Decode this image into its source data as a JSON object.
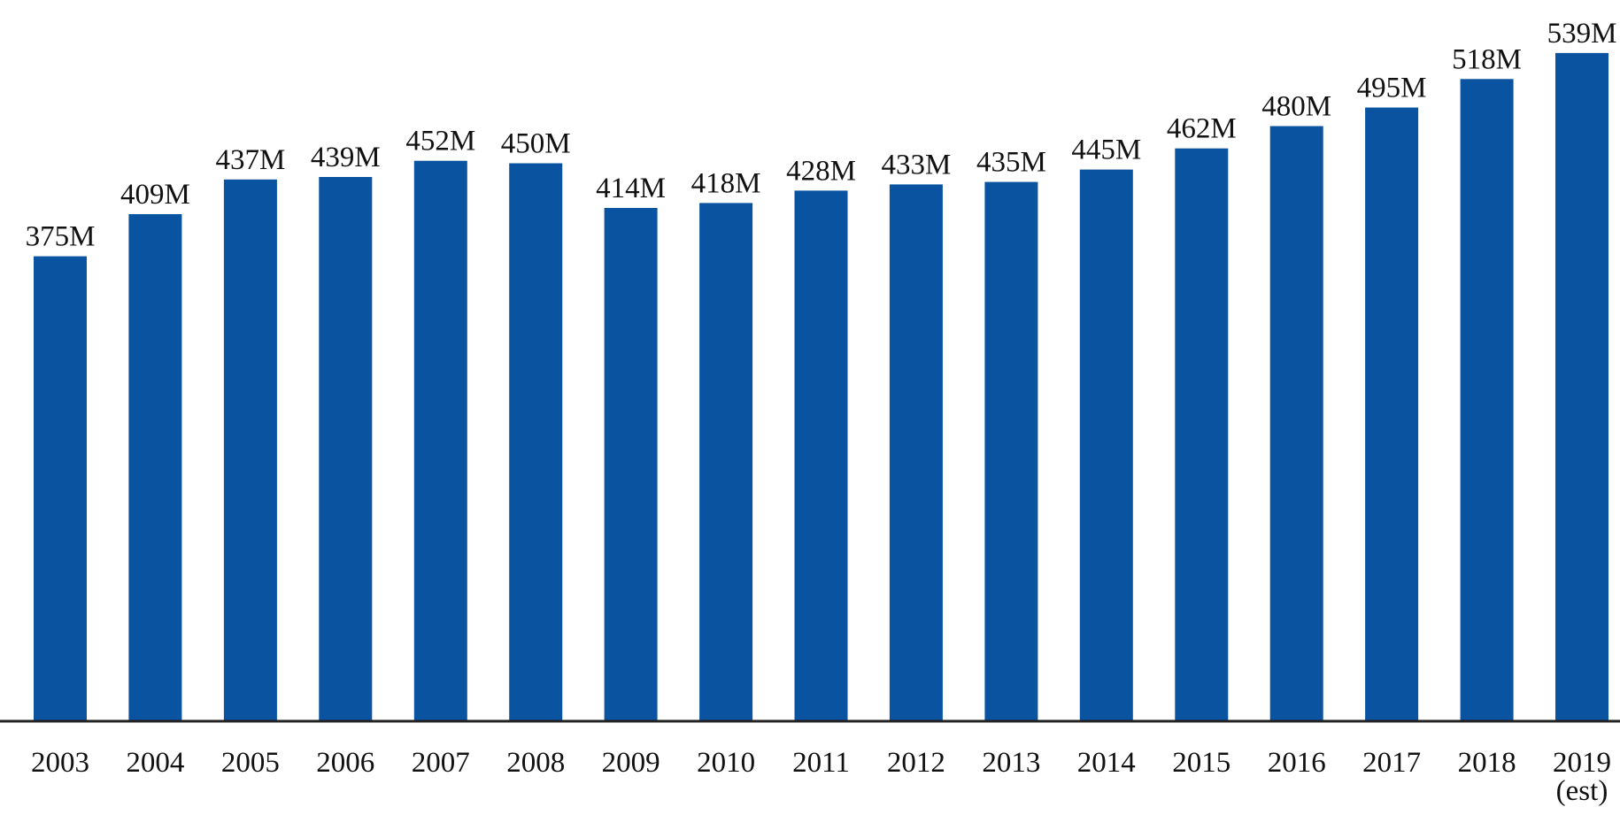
{
  "chart_data": {
    "type": "bar",
    "title": "",
    "xlabel": "",
    "ylabel": "",
    "ylim": [
      0,
      560
    ],
    "grid": false,
    "legend": "none",
    "bar_color": "#0a53a0",
    "axis_color": "#222222",
    "categories": [
      "2003",
      "2004",
      "2005",
      "2006",
      "2007",
      "2008",
      "2009",
      "2010",
      "2011",
      "2012",
      "2013",
      "2014",
      "2015",
      "2016",
      "2017",
      "2018",
      "2019"
    ],
    "category_sublabels": [
      "",
      "",
      "",
      "",
      "",
      "",
      "",
      "",
      "",
      "",
      "",
      "",
      "",
      "",
      "",
      "",
      "(est)"
    ],
    "values": [
      375,
      409,
      437,
      439,
      452,
      450,
      414,
      418,
      428,
      433,
      435,
      445,
      462,
      480,
      495,
      518,
      539
    ],
    "data_labels": [
      "375M",
      "409M",
      "437M",
      "439M",
      "452M",
      "450M",
      "414M",
      "418M",
      "428M",
      "433M",
      "435M",
      "445M",
      "462M",
      "480M",
      "495M",
      "518M",
      "539M"
    ]
  }
}
